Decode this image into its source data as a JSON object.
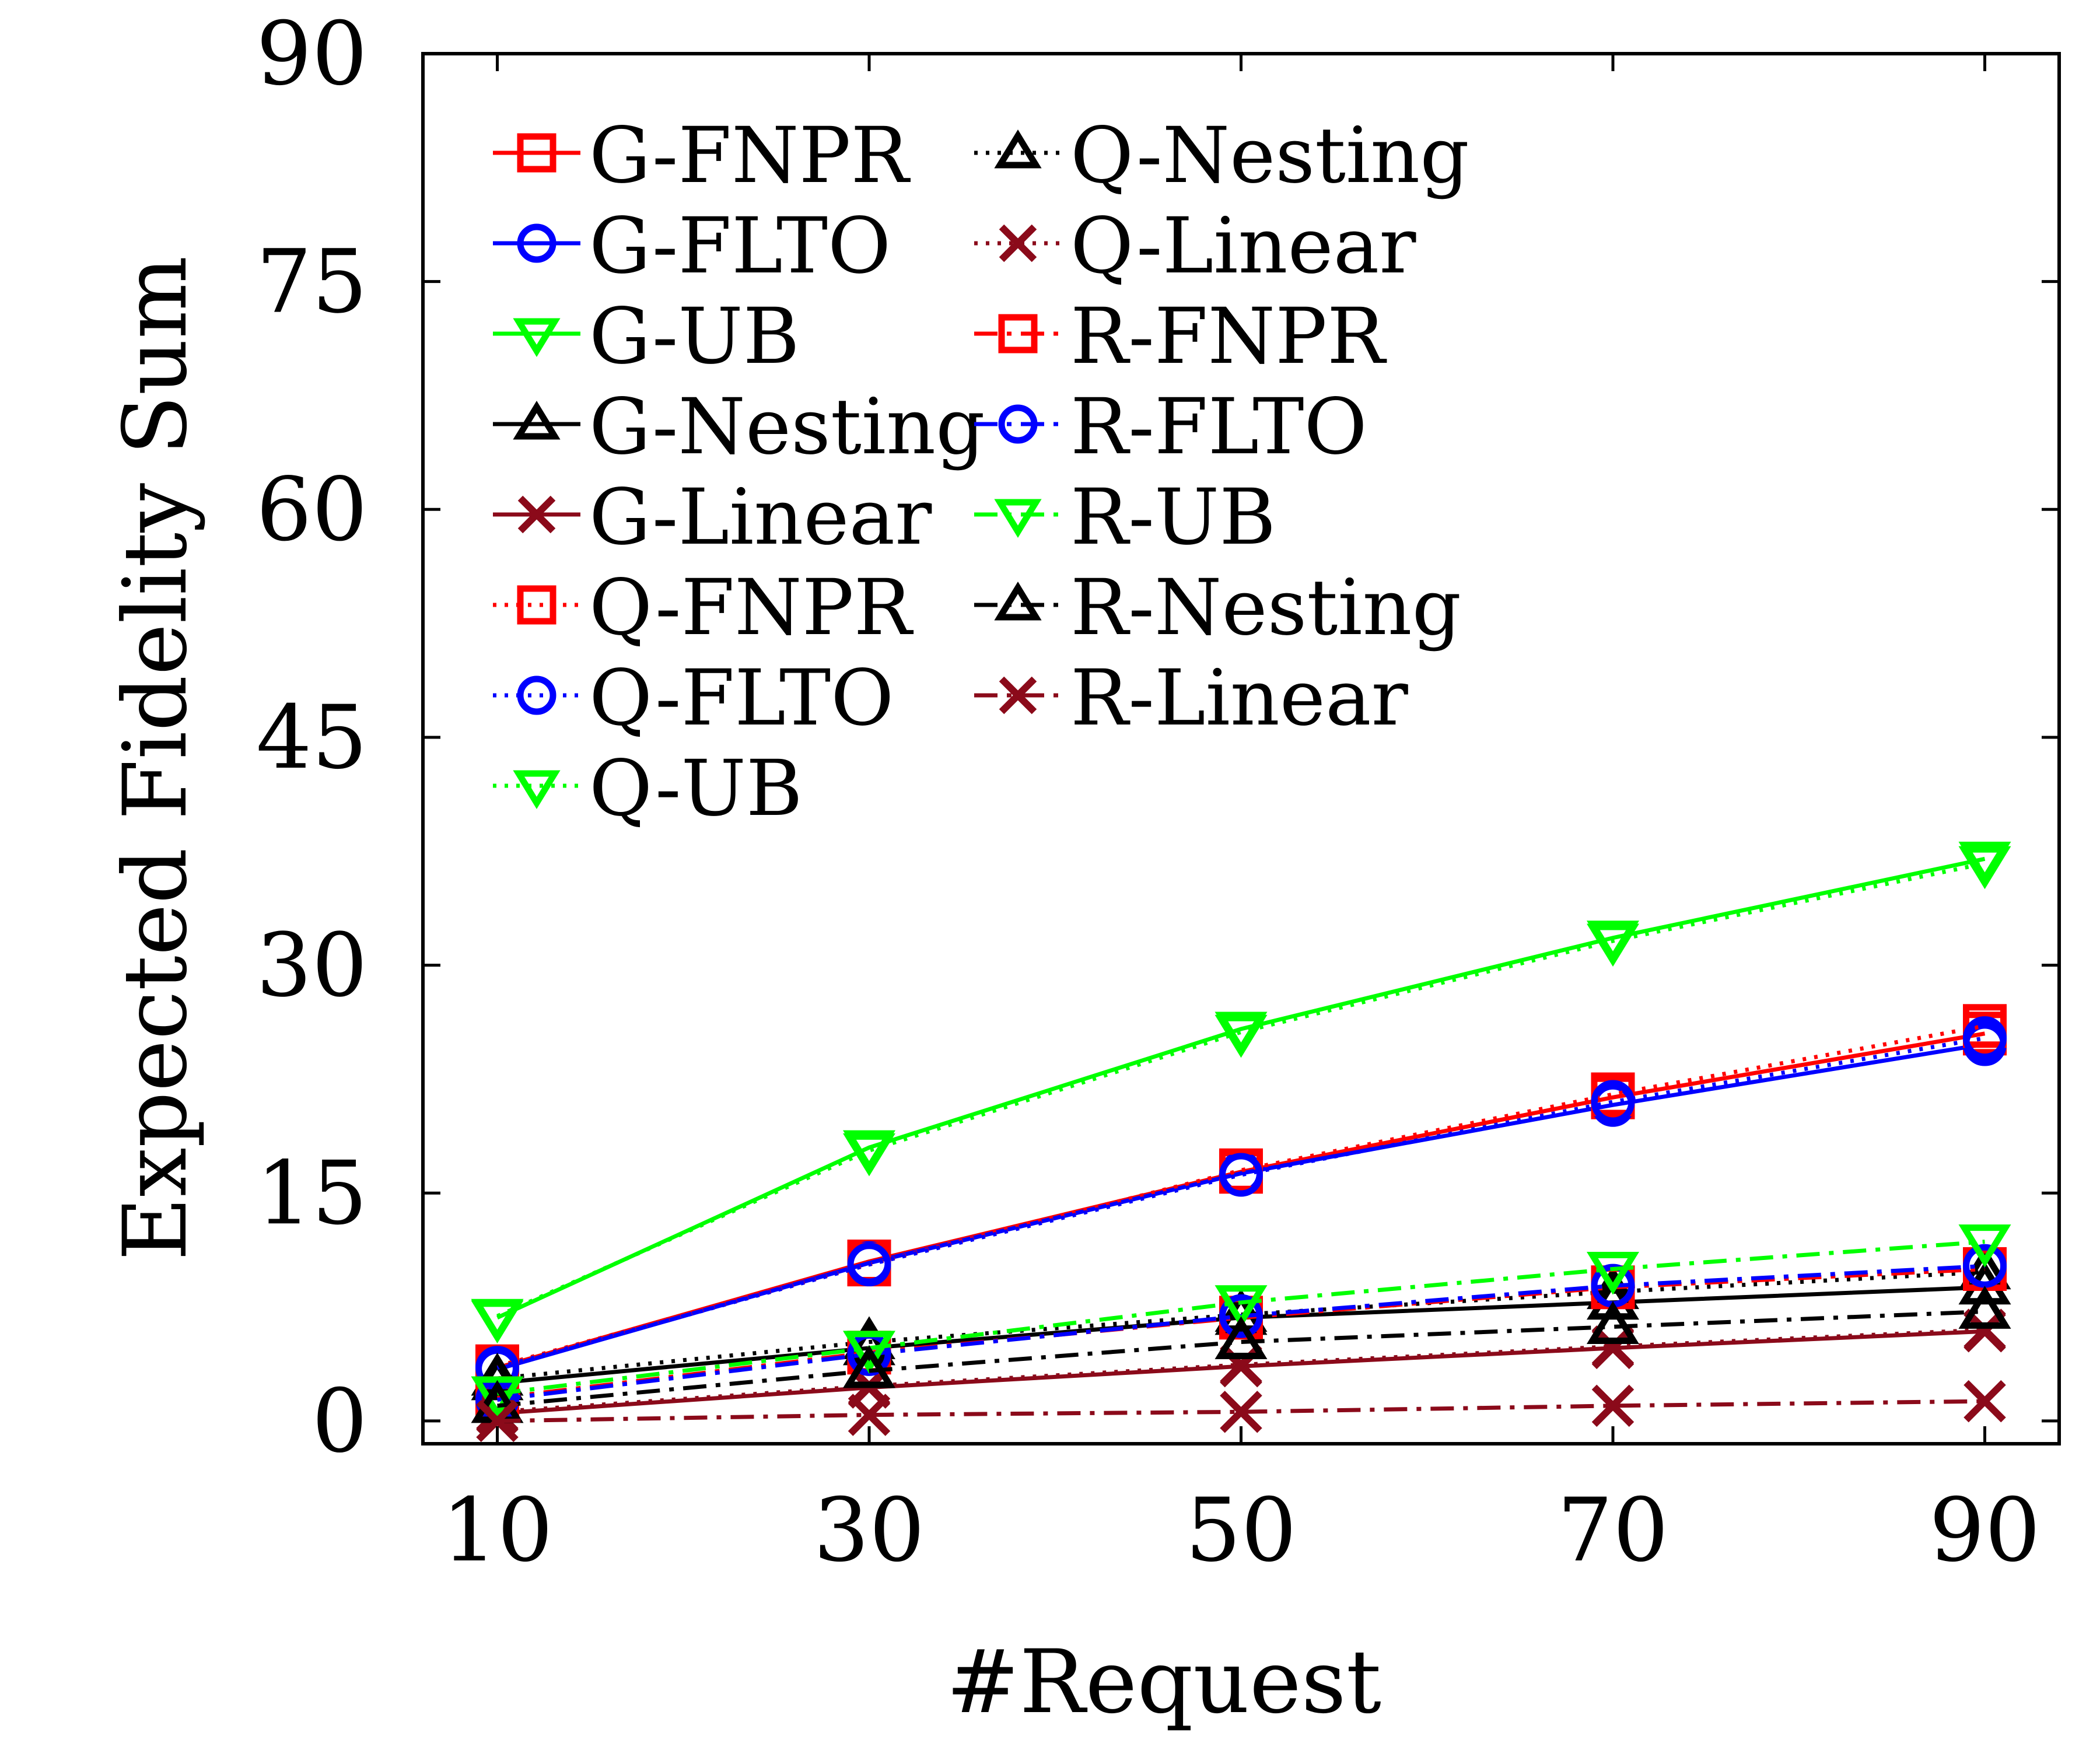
{
  "chart_data": {
    "type": "line",
    "title": "",
    "xlabel": "#Request",
    "ylabel": "Expected Fidelity Sum",
    "x": [
      10,
      30,
      50,
      70,
      90
    ],
    "xlim": [
      6,
      94
    ],
    "ylim": [
      -1.5,
      90
    ],
    "xticks": [
      10,
      30,
      50,
      70,
      90
    ],
    "yticks": [
      0,
      15,
      30,
      45,
      60,
      75,
      90
    ],
    "grid": false,
    "legend_position": "top-left",
    "series": [
      {
        "name": "G-FNPR",
        "color": "#ff0000",
        "marker": "square",
        "dash": "solid",
        "values": [
          3.5,
          10.5,
          16.4,
          21.3,
          25.5
        ]
      },
      {
        "name": "G-FLTO",
        "color": "#0000ff",
        "marker": "circle",
        "dash": "solid",
        "values": [
          3.4,
          10.4,
          16.3,
          20.8,
          24.8
        ]
      },
      {
        "name": "G-UB",
        "color": "#00ff00",
        "marker": "triangle-down",
        "dash": "solid",
        "values": [
          6.8,
          18.0,
          25.8,
          31.8,
          37.0
        ]
      },
      {
        "name": "G-Nesting",
        "color": "#000000",
        "marker": "triangle-up",
        "dash": "solid",
        "values": [
          2.5,
          4.8,
          6.8,
          7.8,
          8.8
        ]
      },
      {
        "name": "G-Linear",
        "color": "#8b0a1a",
        "marker": "x",
        "dash": "solid",
        "values": [
          0.5,
          2.2,
          3.6,
          4.8,
          5.9
        ]
      },
      {
        "name": "Q-FNPR",
        "color": "#ff0000",
        "marker": "square",
        "dash": "dotted",
        "values": [
          3.6,
          10.3,
          16.5,
          21.5,
          26.0
        ]
      },
      {
        "name": "Q-FLTO",
        "color": "#0000ff",
        "marker": "circle",
        "dash": "dotted",
        "values": [
          3.5,
          10.3,
          16.2,
          21.0,
          25.2
        ]
      },
      {
        "name": "Q-UB",
        "color": "#00ff00",
        "marker": "triangle-down",
        "dash": "dotted",
        "values": [
          6.9,
          17.8,
          25.6,
          31.6,
          36.7
        ]
      },
      {
        "name": "Q-Nesting",
        "color": "#000000",
        "marker": "triangle-up",
        "dash": "dotted",
        "values": [
          2.8,
          5.2,
          7.0,
          8.5,
          9.8
        ]
      },
      {
        "name": "Q-Linear",
        "color": "#8b0a1a",
        "marker": "x",
        "dash": "dotted",
        "values": [
          0.6,
          2.3,
          3.7,
          4.9,
          6.0
        ]
      },
      {
        "name": "R-FNPR",
        "color": "#ff0000",
        "marker": "square",
        "dash": "dashdot",
        "values": [
          1.5,
          4.5,
          6.8,
          8.8,
          10.0
        ]
      },
      {
        "name": "R-FLTO",
        "color": "#0000ff",
        "marker": "circle",
        "dash": "dashdot",
        "values": [
          1.4,
          4.4,
          6.9,
          8.9,
          10.2
        ]
      },
      {
        "name": "R-UB",
        "color": "#00ff00",
        "marker": "triangle-down",
        "dash": "dashdot",
        "values": [
          1.8,
          4.8,
          7.8,
          10.0,
          11.8
        ]
      },
      {
        "name": "R-Nesting",
        "color": "#000000",
        "marker": "triangle-up",
        "dash": "dashdot",
        "values": [
          1.0,
          3.3,
          5.2,
          6.2,
          7.2
        ]
      },
      {
        "name": "R-Linear",
        "color": "#8b0a1a",
        "marker": "x",
        "dash": "dashdot",
        "values": [
          0.0,
          0.4,
          0.6,
          1.0,
          1.3
        ]
      }
    ]
  }
}
